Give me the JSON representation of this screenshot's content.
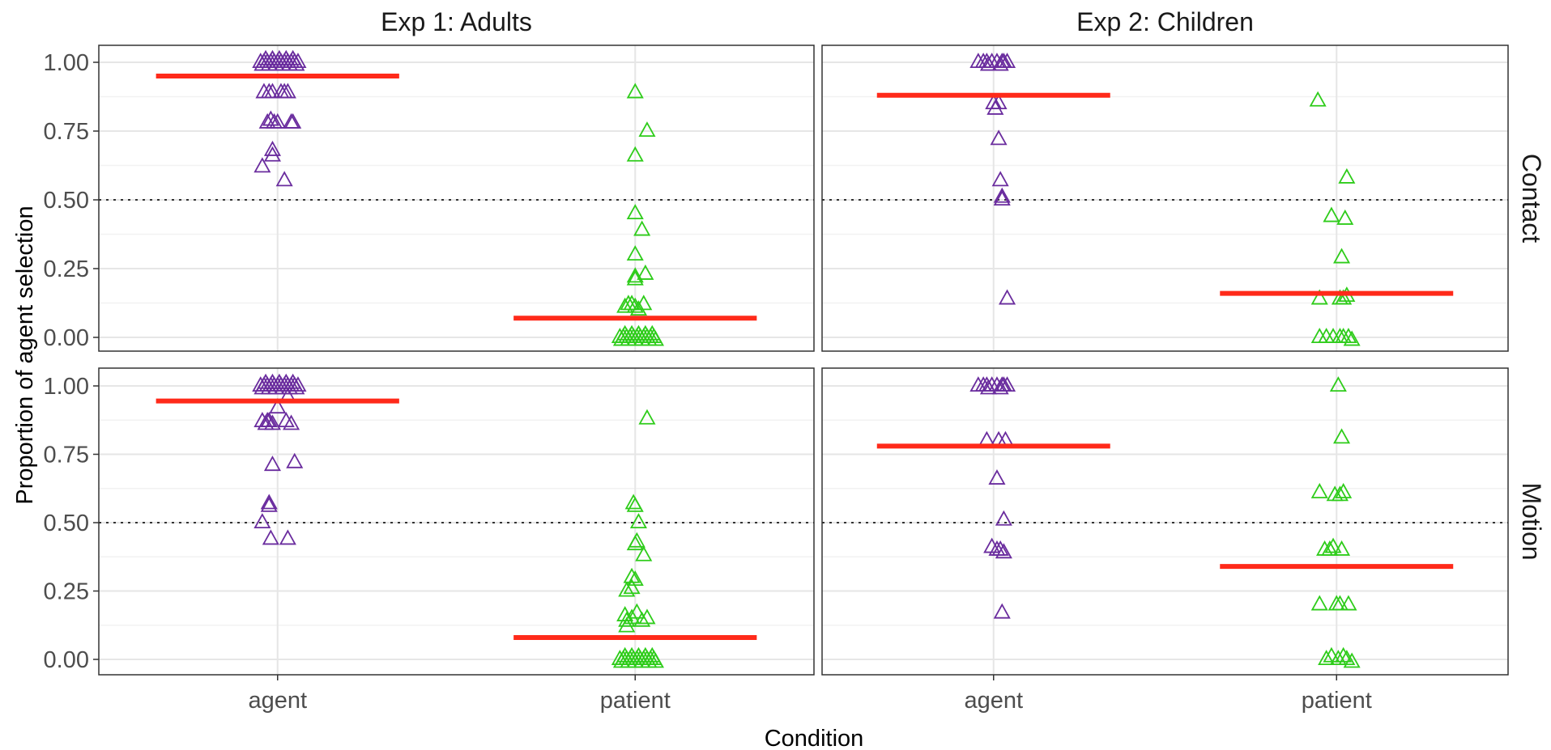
{
  "chart_data": {
    "type": "scatter",
    "xlabel": "Condition",
    "ylabel": "Proportion of agent selection",
    "categories": [
      "agent",
      "patient"
    ],
    "ylim": [
      -0.05,
      1.05
    ],
    "yticks": [
      0,
      0.25,
      0.5,
      0.75,
      1
    ],
    "ytick_labels": [
      "0.00",
      "0.25",
      "0.50",
      "0.75",
      "1.00"
    ],
    "reference_line": 0.5,
    "grid": true,
    "marker": "open-triangle",
    "colors": {
      "agent": "#6a2c9e",
      "patient": "#2ecc1a",
      "mean": "#ff2a1a"
    },
    "col_facets": [
      "Exp 1: Adults",
      "Exp 2: Children"
    ],
    "row_facets": [
      "Contact",
      "Motion"
    ],
    "panels": [
      {
        "col": 0,
        "row": 0,
        "agent": {
          "mean": 0.95,
          "points": [
            [
              -0.1,
              1.0
            ],
            [
              -0.08,
              1.0
            ],
            [
              -0.06,
              1.0
            ],
            [
              -0.04,
              1.0
            ],
            [
              -0.02,
              1.0
            ],
            [
              0.0,
              1.0
            ],
            [
              0.02,
              1.0
            ],
            [
              0.04,
              1.0
            ],
            [
              0.06,
              1.0
            ],
            [
              0.08,
              1.0
            ],
            [
              0.1,
              1.0
            ],
            [
              0.12,
              1.0
            ],
            [
              -0.09,
              0.99
            ],
            [
              -0.05,
              0.99
            ],
            [
              -0.01,
              0.99
            ],
            [
              0.03,
              0.99
            ],
            [
              0.07,
              0.99
            ],
            [
              0.11,
              0.99
            ],
            [
              -0.07,
              1.01
            ],
            [
              -0.03,
              1.01
            ],
            [
              0.01,
              1.01
            ],
            [
              0.05,
              1.01
            ],
            [
              0.09,
              1.01
            ],
            [
              -0.08,
              0.89
            ],
            [
              -0.05,
              0.89
            ],
            [
              -0.03,
              0.89
            ],
            [
              0.02,
              0.89
            ],
            [
              0.04,
              0.89
            ],
            [
              0.06,
              0.89
            ],
            [
              -0.06,
              0.78
            ],
            [
              -0.04,
              0.79
            ],
            [
              -0.02,
              0.78
            ],
            [
              0.0,
              0.78
            ],
            [
              0.08,
              0.78
            ],
            [
              0.09,
              0.78
            ],
            [
              -0.03,
              0.68
            ],
            [
              -0.03,
              0.66
            ],
            [
              -0.09,
              0.62
            ],
            [
              0.04,
              0.57
            ]
          ]
        },
        "patient": {
          "mean": 0.07,
          "points": [
            [
              -0.09,
              0.0
            ],
            [
              -0.07,
              0.0
            ],
            [
              -0.05,
              0.0
            ],
            [
              -0.03,
              0.0
            ],
            [
              -0.01,
              0.0
            ],
            [
              0.01,
              0.0
            ],
            [
              0.03,
              0.0
            ],
            [
              0.05,
              0.0
            ],
            [
              0.07,
              0.0
            ],
            [
              0.09,
              0.0
            ],
            [
              0.11,
              0.0
            ],
            [
              -0.08,
              -0.01
            ],
            [
              -0.04,
              -0.01
            ],
            [
              0.0,
              -0.01
            ],
            [
              0.04,
              -0.01
            ],
            [
              0.08,
              -0.01
            ],
            [
              0.12,
              -0.01
            ],
            [
              -0.06,
              0.01
            ],
            [
              -0.02,
              0.01
            ],
            [
              0.02,
              0.01
            ],
            [
              0.06,
              0.01
            ],
            [
              0.1,
              0.01
            ],
            [
              -0.06,
              0.11
            ],
            [
              -0.04,
              0.12
            ],
            [
              -0.02,
              0.12
            ],
            [
              0.0,
              0.11
            ],
            [
              0.02,
              0.1
            ],
            [
              0.05,
              0.12
            ],
            [
              0.06,
              0.23
            ],
            [
              0.0,
              0.22
            ],
            [
              0.0,
              0.21
            ],
            [
              0.0,
              0.3
            ],
            [
              0.04,
              0.39
            ],
            [
              0.0,
              0.45
            ],
            [
              0.0,
              0.66
            ],
            [
              0.07,
              0.75
            ],
            [
              0.0,
              0.89
            ]
          ]
        }
      },
      {
        "col": 1,
        "row": 0,
        "agent": {
          "mean": 0.88,
          "points": [
            [
              -0.09,
              1.0
            ],
            [
              -0.06,
              1.0
            ],
            [
              -0.03,
              0.99
            ],
            [
              -0.01,
              1.0
            ],
            [
              0.02,
              1.0
            ],
            [
              0.04,
              0.99
            ],
            [
              0.06,
              1.0
            ],
            [
              0.08,
              1.0
            ],
            [
              0.05,
              1.0
            ],
            [
              -0.04,
              1.0
            ],
            [
              0.0,
              0.85
            ],
            [
              0.03,
              0.85
            ],
            [
              0.01,
              0.83
            ],
            [
              0.03,
              0.72
            ],
            [
              0.04,
              0.57
            ],
            [
              0.05,
              0.51
            ],
            [
              0.05,
              0.5
            ],
            [
              0.08,
              0.14
            ]
          ]
        },
        "patient": {
          "mean": 0.16,
          "points": [
            [
              -0.11,
              0.86
            ],
            [
              0.06,
              0.58
            ],
            [
              -0.03,
              0.44
            ],
            [
              0.05,
              0.43
            ],
            [
              0.03,
              0.29
            ],
            [
              -0.1,
              0.14
            ],
            [
              0.02,
              0.14
            ],
            [
              0.04,
              0.14
            ],
            [
              0.06,
              0.15
            ],
            [
              -0.1,
              0.0
            ],
            [
              -0.06,
              0.0
            ],
            [
              -0.02,
              0.0
            ],
            [
              0.02,
              0.0
            ],
            [
              0.04,
              0.0
            ],
            [
              0.07,
              0.0
            ],
            [
              0.09,
              -0.01
            ]
          ]
        }
      },
      {
        "col": 0,
        "row": 1,
        "agent": {
          "mean": 0.945,
          "points": [
            [
              -0.1,
              1.0
            ],
            [
              -0.08,
              1.0
            ],
            [
              -0.06,
              1.0
            ],
            [
              -0.04,
              1.0
            ],
            [
              -0.02,
              1.0
            ],
            [
              0.0,
              1.0
            ],
            [
              0.02,
              1.0
            ],
            [
              0.04,
              1.0
            ],
            [
              0.06,
              1.0
            ],
            [
              0.08,
              1.0
            ],
            [
              0.1,
              1.0
            ],
            [
              0.12,
              1.0
            ],
            [
              -0.09,
              0.99
            ],
            [
              -0.05,
              0.99
            ],
            [
              -0.01,
              0.99
            ],
            [
              0.03,
              0.99
            ],
            [
              0.07,
              0.99
            ],
            [
              0.11,
              0.99
            ],
            [
              -0.07,
              1.01
            ],
            [
              -0.03,
              1.01
            ],
            [
              0.01,
              1.01
            ],
            [
              0.05,
              1.01
            ],
            [
              0.09,
              1.01
            ],
            [
              0.06,
              0.96
            ],
            [
              0.0,
              0.92
            ],
            [
              -0.09,
              0.87
            ],
            [
              -0.07,
              0.86
            ],
            [
              -0.05,
              0.87
            ],
            [
              -0.03,
              0.86
            ],
            [
              0.05,
              0.87
            ],
            [
              0.08,
              0.86
            ],
            [
              -0.06,
              0.87
            ],
            [
              -0.03,
              0.71
            ],
            [
              0.1,
              0.72
            ],
            [
              -0.05,
              0.57
            ],
            [
              -0.05,
              0.56
            ],
            [
              -0.09,
              0.5
            ],
            [
              -0.04,
              0.44
            ],
            [
              0.06,
              0.44
            ]
          ]
        },
        "patient": {
          "mean": 0.08,
          "points": [
            [
              -0.09,
              0.0
            ],
            [
              -0.07,
              0.0
            ],
            [
              -0.05,
              0.0
            ],
            [
              -0.03,
              0.0
            ],
            [
              -0.01,
              0.0
            ],
            [
              0.01,
              0.0
            ],
            [
              0.03,
              0.0
            ],
            [
              0.05,
              0.0
            ],
            [
              0.07,
              0.0
            ],
            [
              0.09,
              0.0
            ],
            [
              0.11,
              0.0
            ],
            [
              -0.08,
              -0.01
            ],
            [
              -0.04,
              -0.01
            ],
            [
              0.0,
              -0.01
            ],
            [
              0.04,
              -0.01
            ],
            [
              0.08,
              -0.01
            ],
            [
              0.12,
              -0.01
            ],
            [
              -0.06,
              0.01
            ],
            [
              -0.02,
              0.01
            ],
            [
              0.02,
              0.01
            ],
            [
              0.06,
              0.01
            ],
            [
              0.1,
              0.01
            ],
            [
              -0.06,
              0.16
            ],
            [
              -0.05,
              0.14
            ],
            [
              -0.05,
              0.12
            ],
            [
              -0.02,
              0.15
            ],
            [
              0.01,
              0.17
            ],
            [
              0.04,
              0.14
            ],
            [
              0.07,
              0.15
            ],
            [
              -0.05,
              0.25
            ],
            [
              -0.02,
              0.26
            ],
            [
              -0.02,
              0.3
            ],
            [
              0.0,
              0.29
            ],
            [
              0.05,
              0.38
            ],
            [
              0.0,
              0.42
            ],
            [
              0.01,
              0.43
            ],
            [
              0.02,
              0.5
            ],
            [
              0.0,
              0.56
            ],
            [
              -0.01,
              0.57
            ],
            [
              0.07,
              0.88
            ]
          ]
        }
      },
      {
        "col": 1,
        "row": 1,
        "agent": {
          "mean": 0.78,
          "points": [
            [
              -0.09,
              1.0
            ],
            [
              -0.06,
              1.0
            ],
            [
              -0.03,
              0.99
            ],
            [
              -0.01,
              1.0
            ],
            [
              0.02,
              1.0
            ],
            [
              0.04,
              0.99
            ],
            [
              0.06,
              1.0
            ],
            [
              0.08,
              1.0
            ],
            [
              0.05,
              1.0
            ],
            [
              -0.04,
              1.0
            ],
            [
              -0.04,
              0.8
            ],
            [
              0.03,
              0.8
            ],
            [
              0.07,
              0.8
            ],
            [
              0.02,
              0.66
            ],
            [
              0.06,
              0.51
            ],
            [
              -0.01,
              0.41
            ],
            [
              0.02,
              0.4
            ],
            [
              0.04,
              0.4
            ],
            [
              0.06,
              0.39
            ],
            [
              0.05,
              0.17
            ]
          ]
        },
        "patient": {
          "mean": 0.34,
          "points": [
            [
              0.01,
              1.0
            ],
            [
              0.03,
              0.81
            ],
            [
              -0.1,
              0.61
            ],
            [
              -0.01,
              0.6
            ],
            [
              0.02,
              0.6
            ],
            [
              0.04,
              0.61
            ],
            [
              -0.07,
              0.4
            ],
            [
              -0.04,
              0.4
            ],
            [
              -0.02,
              0.41
            ],
            [
              0.03,
              0.4
            ],
            [
              -0.1,
              0.2
            ],
            [
              0.0,
              0.2
            ],
            [
              0.02,
              0.2
            ],
            [
              0.07,
              0.2
            ],
            [
              -0.06,
              0.0
            ],
            [
              -0.03,
              0.01
            ],
            [
              0.01,
              0.0
            ],
            [
              0.04,
              0.01
            ],
            [
              0.06,
              0.0
            ],
            [
              0.09,
              -0.01
            ]
          ]
        }
      }
    ]
  }
}
